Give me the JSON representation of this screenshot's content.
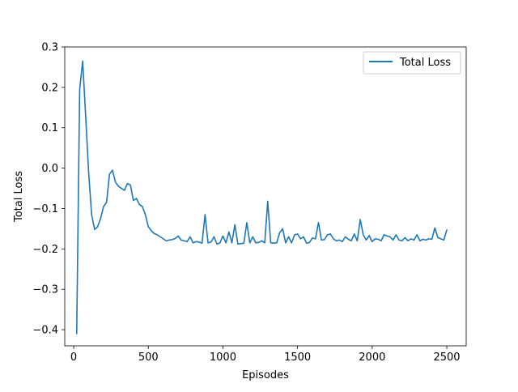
{
  "chart_data": {
    "type": "line",
    "title": "",
    "xlabel": "Episodes",
    "ylabel": "Total Loss",
    "xlim": [
      -60,
      2630
    ],
    "ylim": [
      -0.44,
      0.3
    ],
    "xticks": [
      0,
      500,
      1000,
      1500,
      2000,
      2500
    ],
    "xtick_labels": [
      "0",
      "500",
      "1000",
      "1500",
      "2000",
      "2500"
    ],
    "yticks": [
      -0.4,
      -0.3,
      -0.2,
      -0.1,
      0.0,
      0.1,
      0.2,
      0.3
    ],
    "ytick_labels": [
      "−0.4",
      "−0.3",
      "−0.2",
      "−0.1",
      "0.0",
      "0.1",
      "0.2",
      "0.3"
    ],
    "grid": false,
    "legend_position": "top-right",
    "series": [
      {
        "name": "Total Loss",
        "color": "#1f77b4",
        "x": [
          20,
          40,
          60,
          80,
          100,
          120,
          140,
          160,
          180,
          200,
          220,
          240,
          260,
          280,
          300,
          320,
          340,
          360,
          380,
          400,
          420,
          440,
          460,
          480,
          500,
          520,
          540,
          560,
          580,
          600,
          620,
          640,
          660,
          680,
          700,
          720,
          740,
          760,
          780,
          800,
          820,
          840,
          860,
          880,
          900,
          920,
          940,
          960,
          980,
          1000,
          1020,
          1040,
          1060,
          1080,
          1100,
          1120,
          1140,
          1160,
          1180,
          1200,
          1220,
          1240,
          1260,
          1280,
          1300,
          1320,
          1340,
          1360,
          1380,
          1400,
          1420,
          1440,
          1460,
          1480,
          1500,
          1520,
          1540,
          1560,
          1580,
          1600,
          1620,
          1640,
          1660,
          1680,
          1700,
          1720,
          1740,
          1760,
          1780,
          1800,
          1820,
          1840,
          1860,
          1880,
          1900,
          1920,
          1940,
          1960,
          1980,
          2000,
          2020,
          2040,
          2060,
          2080,
          2100,
          2120,
          2140,
          2160,
          2180,
          2200,
          2220,
          2240,
          2260,
          2280,
          2300,
          2320,
          2340,
          2360,
          2380,
          2400,
          2420,
          2440,
          2460,
          2480,
          2500
        ],
        "y": [
          -0.41,
          0.195,
          0.265,
          0.13,
          -0.01,
          -0.115,
          -0.152,
          -0.145,
          -0.125,
          -0.095,
          -0.085,
          -0.015,
          -0.005,
          -0.035,
          -0.045,
          -0.05,
          -0.055,
          -0.038,
          -0.042,
          -0.08,
          -0.075,
          -0.09,
          -0.095,
          -0.115,
          -0.145,
          -0.155,
          -0.162,
          -0.165,
          -0.17,
          -0.175,
          -0.18,
          -0.178,
          -0.177,
          -0.174,
          -0.168,
          -0.178,
          -0.18,
          -0.182,
          -0.17,
          -0.185,
          -0.182,
          -0.183,
          -0.186,
          -0.115,
          -0.185,
          -0.183,
          -0.17,
          -0.188,
          -0.185,
          -0.168,
          -0.185,
          -0.158,
          -0.185,
          -0.14,
          -0.188,
          -0.187,
          -0.186,
          -0.135,
          -0.185,
          -0.17,
          -0.185,
          -0.184,
          -0.18,
          -0.185,
          -0.082,
          -0.185,
          -0.186,
          -0.185,
          -0.16,
          -0.15,
          -0.185,
          -0.17,
          -0.185,
          -0.165,
          -0.163,
          -0.175,
          -0.17,
          -0.186,
          -0.184,
          -0.173,
          -0.175,
          -0.135,
          -0.178,
          -0.177,
          -0.165,
          -0.163,
          -0.175,
          -0.18,
          -0.178,
          -0.182,
          -0.17,
          -0.176,
          -0.18,
          -0.163,
          -0.18,
          -0.127,
          -0.165,
          -0.178,
          -0.167,
          -0.182,
          -0.175,
          -0.176,
          -0.18,
          -0.165,
          -0.168,
          -0.17,
          -0.178,
          -0.165,
          -0.178,
          -0.18,
          -0.172,
          -0.18,
          -0.175,
          -0.178,
          -0.165,
          -0.18,
          -0.176,
          -0.178,
          -0.175,
          -0.176,
          -0.148,
          -0.172,
          -0.175,
          -0.178,
          -0.153
        ]
      }
    ]
  }
}
